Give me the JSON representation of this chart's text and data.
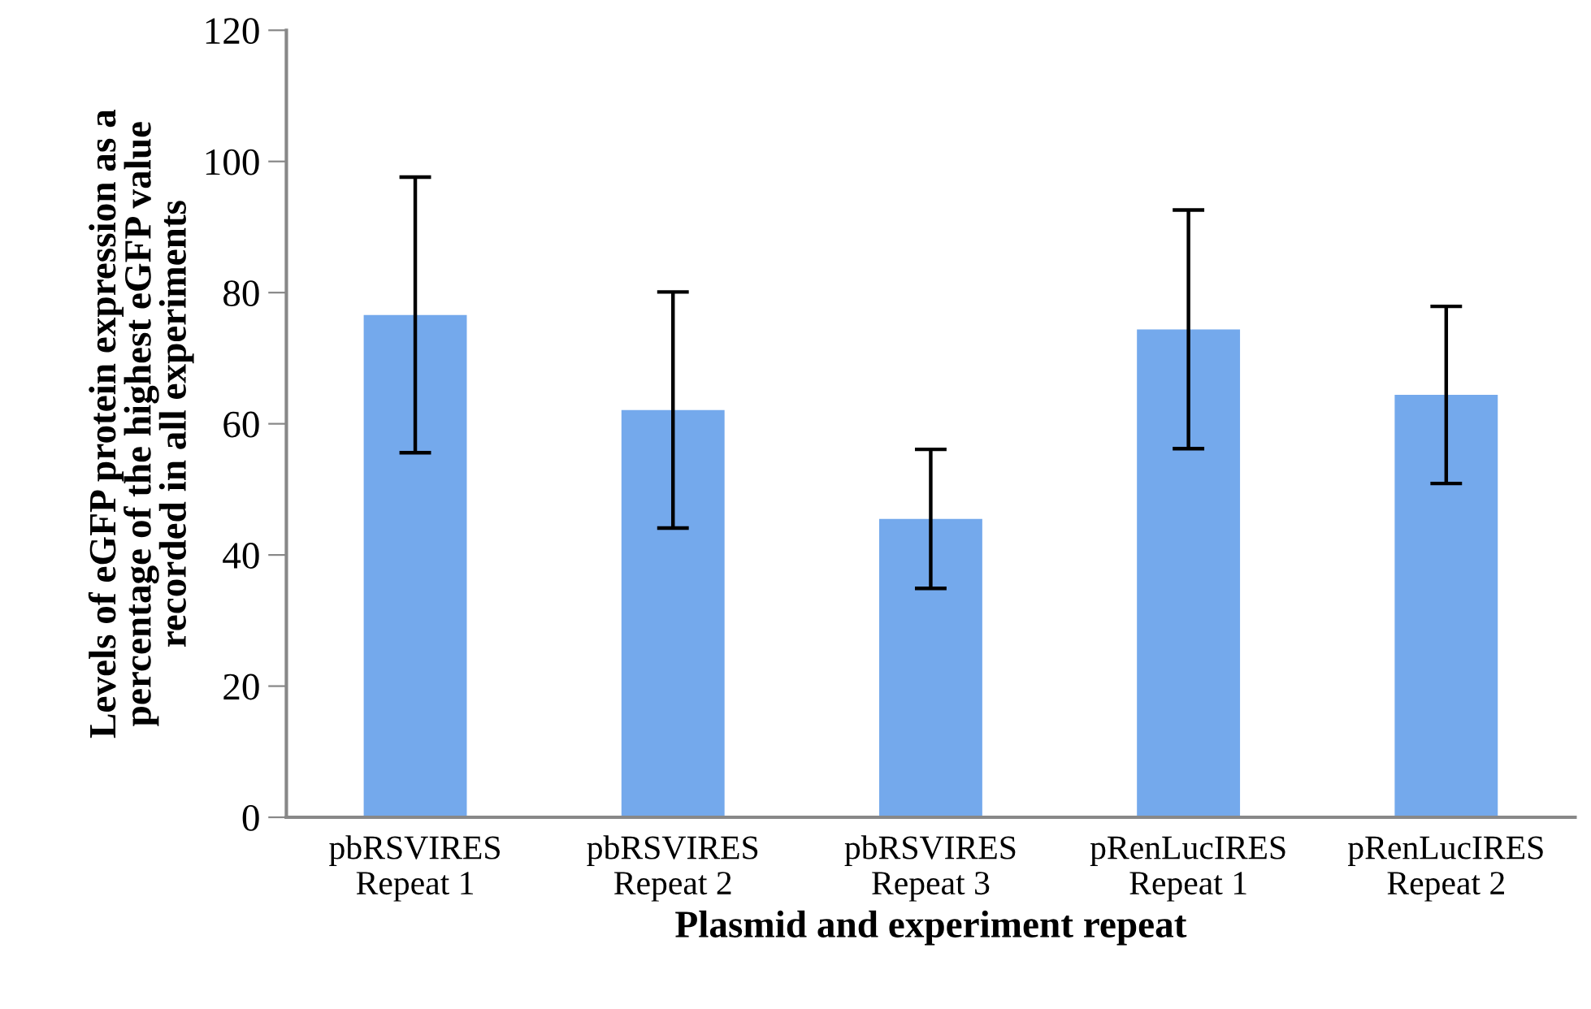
{
  "chart_data": {
    "type": "bar",
    "xlabel": "Plasmid and experiment repeat",
    "ylabel": "Levels of eGFP protein expression as a\npercentage of the highest eGFP value\nrecorded in all experiments",
    "categories": [
      "pbRSVIRES\nRepeat 1",
      "pbRSVIRES\nRepeat 2",
      "pbRSVIRES\nRepeat 3",
      "pRenLucIRES\nRepeat 1",
      "pRenLucIRES\nRepeat 2"
    ],
    "values": [
      76.6,
      62.1,
      45.5,
      74.4,
      64.4
    ],
    "errors": [
      21,
      18,
      10.6,
      18.2,
      13.5
    ],
    "color": "#74a9ec",
    "ylim": [
      0,
      120
    ],
    "yticks": [
      0,
      20,
      40,
      60,
      80,
      100,
      120
    ],
    "grid": false,
    "legend": false
  }
}
